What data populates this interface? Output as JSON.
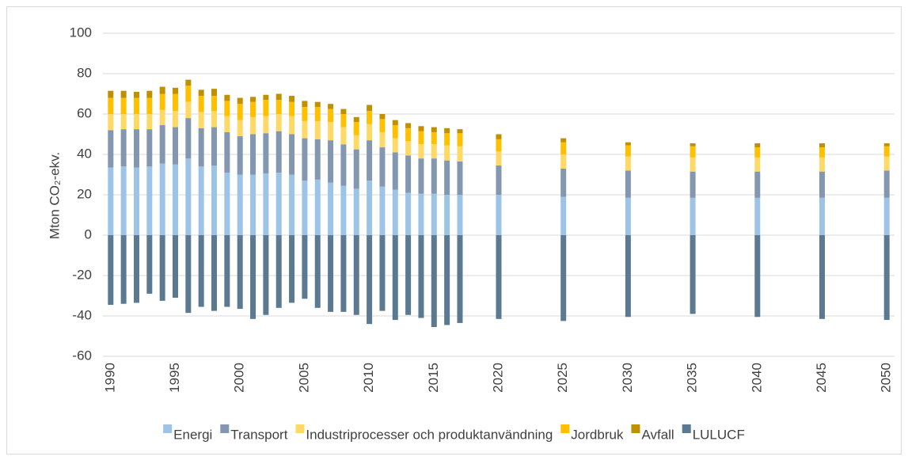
{
  "chart_data": {
    "type": "stacked-bar",
    "y_label": "Mton CO₂-ekv.",
    "x": [
      1990,
      1991,
      1992,
      1993,
      1994,
      1995,
      1996,
      1997,
      1998,
      1999,
      2000,
      2001,
      2002,
      2003,
      2004,
      2005,
      2006,
      2007,
      2008,
      2009,
      2010,
      2011,
      2012,
      2013,
      2014,
      2015,
      2016,
      2017,
      2020,
      2025,
      2030,
      2035,
      2040,
      2045,
      2050
    ],
    "xlim": [
      1989.4,
      2050.6
    ],
    "xticks": [
      1990,
      1995,
      2000,
      2005,
      2010,
      2015,
      2020,
      2025,
      2030,
      2035,
      2040,
      2045,
      2050
    ],
    "ylim": [
      -60,
      100
    ],
    "yticks": [
      -60,
      -40,
      -20,
      0,
      20,
      40,
      60,
      80,
      100
    ],
    "grid": true,
    "legend": "bottom",
    "series": [
      {
        "name": "Energi",
        "color": "#9dc3e6",
        "values": [
          33.5,
          34,
          33.5,
          34,
          35.5,
          35,
          38,
          34,
          34.5,
          31,
          30,
          30,
          30.5,
          31,
          30,
          27,
          27.5,
          26,
          24.5,
          23,
          27,
          24,
          22.5,
          21,
          20.5,
          20.5,
          20,
          20,
          20,
          19,
          18.5,
          18.5,
          18.5,
          18.5,
          18.5
        ]
      },
      {
        "name": "Transport",
        "color": "#8497b0",
        "values": [
          18.5,
          18.5,
          19,
          18.5,
          19,
          18.5,
          20,
          19,
          19,
          20,
          19,
          20,
          20,
          20.5,
          20,
          21,
          20,
          21,
          20.5,
          19.5,
          20,
          19.5,
          18.5,
          18.5,
          17.5,
          17.5,
          17,
          16.5,
          14.5,
          14,
          13.5,
          13,
          13,
          13,
          13.5
        ]
      },
      {
        "name": "Industriprocesser och produktanvändning",
        "color": "#ffd966",
        "values": [
          8,
          7.5,
          7.5,
          7.5,
          7.5,
          8,
          8,
          8,
          8,
          8,
          8,
          8.5,
          8.5,
          8.5,
          9,
          8.5,
          9,
          9,
          8.5,
          7,
          8,
          7.5,
          7,
          7,
          7,
          7,
          7.5,
          7.5,
          7,
          7,
          7,
          7,
          7,
          7,
          7
        ]
      },
      {
        "name": "Jordbruk",
        "color": "#ffc000",
        "values": [
          8,
          8,
          8,
          8,
          8,
          8.5,
          8,
          8,
          7.5,
          7.5,
          8,
          7.5,
          8,
          7,
          7,
          7,
          7,
          6.5,
          6.5,
          6.5,
          6.5,
          6.5,
          6.5,
          6.5,
          6.5,
          6,
          6,
          6.5,
          6,
          6,
          5.5,
          5.5,
          5,
          5,
          5
        ]
      },
      {
        "name": "Avfall",
        "color": "#bf9000",
        "values": [
          3.5,
          3.5,
          3,
          3.5,
          3.5,
          3,
          3,
          3,
          3.5,
          3,
          3,
          2.5,
          2.5,
          3,
          3,
          3,
          2.5,
          2.5,
          2.5,
          2.5,
          3,
          2.5,
          2.5,
          2.5,
          2.5,
          2.5,
          2.5,
          2,
          2.5,
          2,
          1.5,
          1.5,
          2,
          2,
          1.5
        ]
      },
      {
        "name": "LULUCF",
        "color": "#5b7a91",
        "values": [
          -34.5,
          -34,
          -33.5,
          -29,
          -32.5,
          -31,
          -38.5,
          -35.5,
          -37.5,
          -35.5,
          -36.5,
          -41.5,
          -39.5,
          -36,
          -33.5,
          -31.5,
          -36,
          -38,
          -38,
          -39.5,
          -44,
          -37.5,
          -42,
          -39.5,
          -41,
          -45.5,
          -44.5,
          -43.5,
          -41.5,
          -42.5,
          -40.5,
          -39,
          -40.5,
          -41.5,
          -42
        ]
      }
    ]
  }
}
